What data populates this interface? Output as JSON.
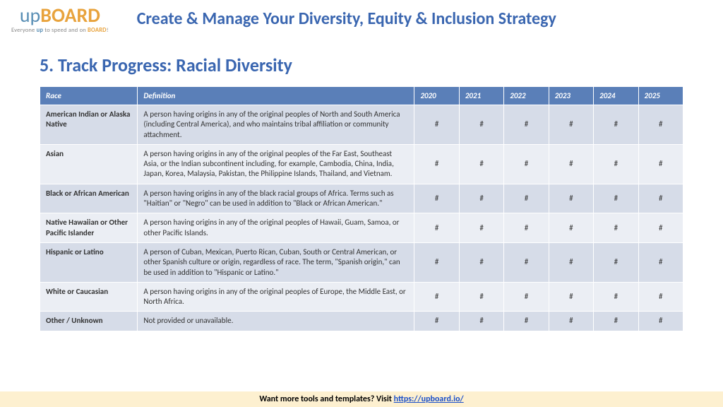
{
  "logo": {
    "up": "up",
    "board": "BOARD",
    "tagline_pre": "Everyone ",
    "tagline_up": "up",
    "tagline_mid": " to speed and on ",
    "tagline_board": "BOARD",
    "tagline_post": "!"
  },
  "header_title": "Create & Manage Your Diversity, Equity & Inclusion Strategy",
  "section_title": "5. Track Progress: Racial Diversity",
  "table": {
    "headers": {
      "race": "Race",
      "definition": "Definition",
      "y2020": "2020",
      "y2021": "2021",
      "y2022": "2022",
      "y2023": "2023",
      "y2024": "2024",
      "y2025": "2025"
    },
    "rows": [
      {
        "race": "American Indian or Alaska Native",
        "definition": "A person having origins in any of the original peoples of North and South America (including Central America), and who maintains tribal affiliation or community attachment.",
        "vals": [
          "#",
          "#",
          "#",
          "#",
          "#",
          "#"
        ]
      },
      {
        "race": "Asian",
        "definition": "A person having origins in any of the original peoples of the Far East, Southeast Asia, or the Indian subcontinent including, for example, Cambodia, China, India, Japan, Korea, Malaysia, Pakistan, the Philippine Islands, Thailand, and Vietnam.",
        "vals": [
          "#",
          "#",
          "#",
          "#",
          "#",
          "#"
        ]
      },
      {
        "race": "Black or African American",
        "definition": "A person having origins in any of the black racial groups of Africa. Terms such as \"Haitian\" or \"Negro\" can be used in addition to \"Black or African American.\"",
        "vals": [
          "#",
          "#",
          "#",
          "#",
          "#",
          "#"
        ]
      },
      {
        "race": "Native Hawaiian or Other Pacific Islander",
        "definition": "A person having origins in any of the original peoples of Hawaii, Guam, Samoa, or other Pacific Islands.",
        "vals": [
          "#",
          "#",
          "#",
          "#",
          "#",
          "#"
        ]
      },
      {
        "race": "Hispanic or Latino",
        "definition": "A person of Cuban, Mexican, Puerto Rican, Cuban, South or Central American, or other Spanish culture or origin, regardless of race. The term, \"Spanish origin,\" can be used in addition to \"Hispanic or Latino.\"",
        "vals": [
          "#",
          "#",
          "#",
          "#",
          "#",
          "#"
        ]
      },
      {
        "race": "White or Caucasian",
        "definition": "A person having origins in any of the original peoples of Europe, the Middle East, or North Africa.",
        "vals": [
          "#",
          "#",
          "#",
          "#",
          "#",
          "#"
        ]
      },
      {
        "race": "Other / Unknown",
        "definition": "Not provided or unavailable.",
        "vals": [
          "#",
          "#",
          "#",
          "#",
          "#",
          "#"
        ]
      }
    ]
  },
  "footer": {
    "text": "Want more tools and templates? Visit ",
    "link_text": "https://upboard.io/",
    "link_href": "https://upboard.io/"
  },
  "colors": {
    "header_bg": "#5a7fb8",
    "row_odd": "#d6dce8",
    "row_even": "#ebeef4",
    "title": "#3a66b0",
    "footer_bg": "#fdf0d0"
  }
}
